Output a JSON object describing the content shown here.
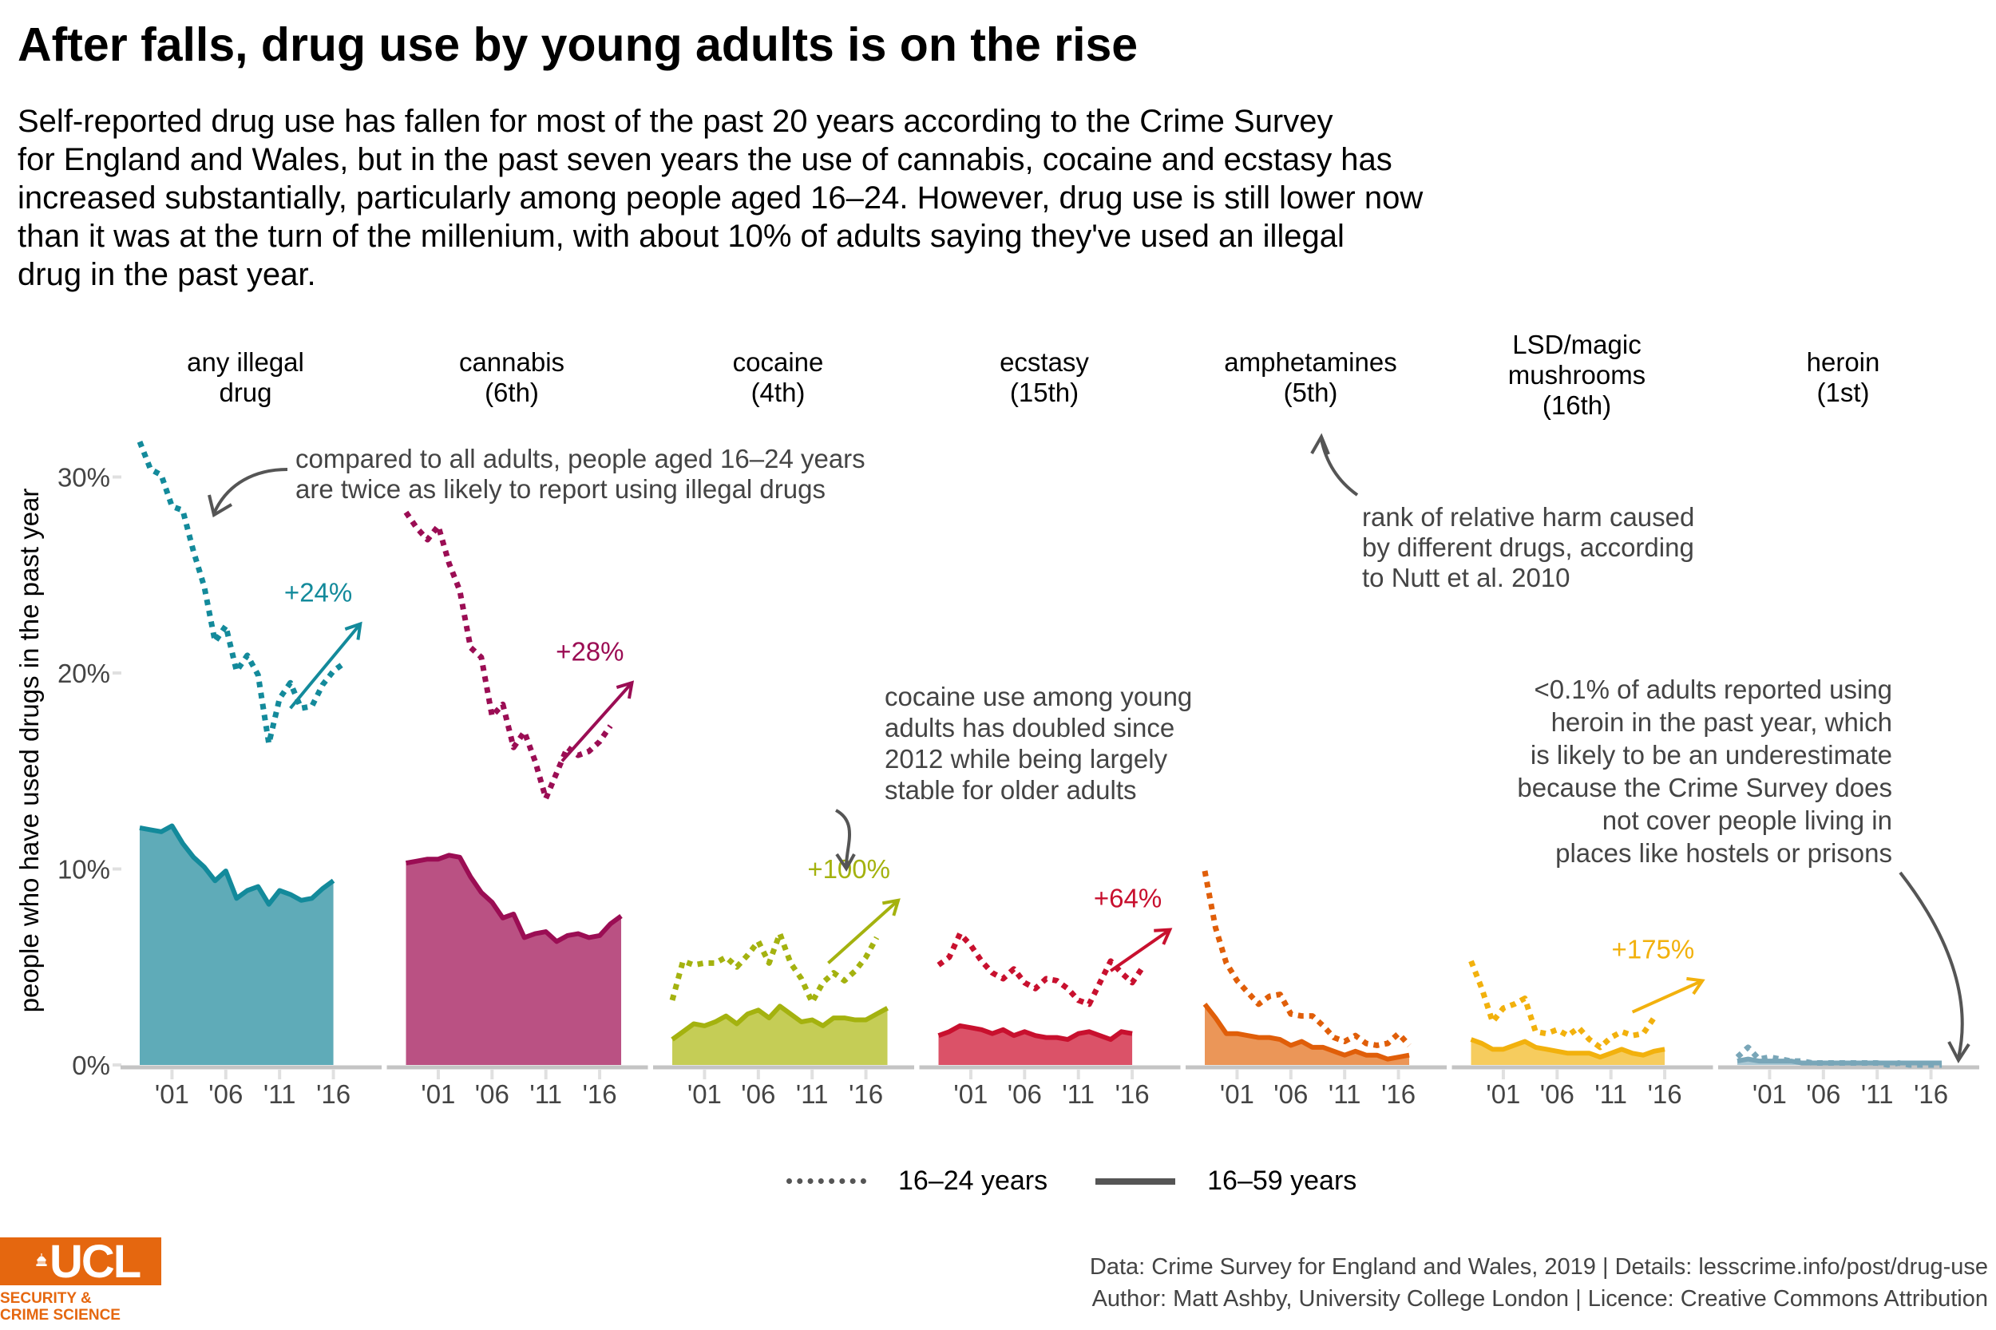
{
  "title": "After falls, drug use by young adults is on the rise",
  "subtitle_lines": [
    "Self-reported drug use has fallen for most of the past 20 years according to the Crime Survey",
    "for England and Wales, but in the past seven years the use of cannabis, cocaine and ecstasy has",
    "increased substantially, particularly among people aged 16–24. However, drug use is still lower now",
    "than it was at the turn of the millenium, with about 10% of adults saying they've used an illegal",
    "drug in the past year."
  ],
  "legend": {
    "young_label": "16–24 years",
    "all_label": "16–59 years"
  },
  "logo": {
    "brand": "UCL",
    "line1": "SECURITY &",
    "line2": "CRIME SCIENCE",
    "color": "#e5670f"
  },
  "caption": {
    "line1": "Data: Crime Survey for England and Wales, 2019 |  Details: lesscrime.info/post/drug-use",
    "line2": "Author: Matt Ashby, University College London |  Licence: Creative Commons Attribution"
  },
  "chart_data": {
    "type": "area",
    "ylabel": "people who have used drugs in the past year",
    "xlabel": "",
    "ylim": [
      0,
      32
    ],
    "yticks": [
      0,
      10,
      20,
      30
    ],
    "ytick_labels": [
      "0%",
      "10%",
      "20%",
      "30%"
    ],
    "xlim": [
      1997,
      2020
    ],
    "xticks": [
      2001,
      2006,
      2011,
      2016
    ],
    "xtick_labels": [
      "'01",
      "'06",
      "'11",
      "'16"
    ],
    "grid": false,
    "legend_position": "bottom",
    "years": [
      1998,
      1999,
      2000,
      2001,
      2002,
      2003,
      2004,
      2005,
      2006,
      2007,
      2008,
      2009,
      2010,
      2011,
      2012,
      2013,
      2014,
      2015,
      2016,
      2017,
      2018,
      2019
    ],
    "panels": [
      {
        "title": [
          "any illegal",
          "drug"
        ],
        "color": "#138a9b",
        "fill": "#5fabb8",
        "young": [
          31.8,
          30.4,
          30.1,
          28.5,
          28.3,
          26.2,
          24.4,
          21.6,
          22.4,
          20.1,
          20.9,
          19.9,
          16.4,
          18.7,
          19.5,
          18.2,
          18.3,
          19.4,
          20.1,
          20.5,
          null,
          null
        ],
        "all": [
          12.1,
          12.0,
          11.9,
          12.2,
          11.3,
          10.6,
          10.1,
          9.4,
          9.9,
          8.5,
          8.9,
          9.1,
          8.2,
          8.9,
          8.7,
          8.4,
          8.5,
          9.0,
          9.4,
          null,
          null,
          null
        ],
        "change_label": "+24%",
        "arrow": [
          2012.0,
          18.2,
          2018.5,
          22.5
        ]
      },
      {
        "title": [
          "cannabis",
          "(6th)"
        ],
        "color": "#9b0d54",
        "fill": "#ba5183",
        "young": [
          28.2,
          27.4,
          26.8,
          27.5,
          25.6,
          24.2,
          21.3,
          20.8,
          17.8,
          18.4,
          16.2,
          17.0,
          15.5,
          13.6,
          14.9,
          16.2,
          15.8,
          16.0,
          16.5,
          17.3,
          null,
          null
        ],
        "all": [
          10.3,
          10.4,
          10.5,
          10.5,
          10.7,
          10.6,
          9.6,
          8.8,
          8.3,
          7.5,
          7.7,
          6.5,
          6.7,
          6.8,
          6.3,
          6.6,
          6.7,
          6.5,
          6.6,
          7.2,
          7.6,
          null
        ],
        "change_label": "+28%",
        "arrow": [
          2012.5,
          15.5,
          2019.0,
          19.5
        ]
      },
      {
        "title": [
          "cocaine",
          "(4th)"
        ],
        "color": "#a4b20f",
        "fill": "#c5cd56",
        "young": [
          3.3,
          5.3,
          5.1,
          5.2,
          5.2,
          5.5,
          5.0,
          5.6,
          6.3,
          5.2,
          6.7,
          5.2,
          4.4,
          3.2,
          4.2,
          4.7,
          4.3,
          4.8,
          5.5,
          6.5,
          null,
          null
        ],
        "all": [
          1.3,
          1.7,
          2.1,
          2.0,
          2.2,
          2.5,
          2.1,
          2.6,
          2.8,
          2.4,
          3.0,
          2.6,
          2.2,
          2.3,
          2.0,
          2.4,
          2.4,
          2.3,
          2.3,
          2.6,
          2.9,
          null
        ],
        "change_label": "+100%",
        "arrow": [
          2012.5,
          5.2,
          2019.0,
          8.4
        ]
      },
      {
        "title": [
          "ecstasy",
          "(15th)"
        ],
        "color": "#c8102e",
        "fill": "#db5268",
        "young": [
          5.1,
          5.5,
          6.7,
          6.1,
          5.3,
          4.7,
          4.4,
          4.9,
          4.2,
          3.9,
          4.4,
          4.3,
          3.9,
          3.3,
          3.1,
          4.2,
          5.3,
          4.7,
          4.2,
          5.0,
          null,
          null
        ],
        "all": [
          1.5,
          1.7,
          2.0,
          1.9,
          1.8,
          1.6,
          1.8,
          1.5,
          1.7,
          1.5,
          1.4,
          1.4,
          1.3,
          1.6,
          1.7,
          1.5,
          1.3,
          1.7,
          1.6,
          null,
          null,
          null
        ],
        "change_label": "+64%",
        "arrow": [
          2014.0,
          4.8,
          2019.5,
          6.9
        ]
      },
      {
        "title": [
          "amphetamines",
          "(5th)"
        ],
        "color": "#e05e09",
        "fill": "#eb9658",
        "young": [
          9.9,
          7.0,
          5.2,
          4.3,
          3.7,
          3.1,
          3.5,
          3.6,
          2.6,
          2.5,
          2.5,
          2.0,
          1.4,
          1.2,
          1.5,
          1.1,
          1.0,
          1.1,
          1.6,
          1.0,
          null,
          null
        ],
        "all": [
          3.1,
          2.4,
          1.6,
          1.6,
          1.5,
          1.4,
          1.4,
          1.3,
          1.0,
          1.2,
          0.9,
          0.9,
          0.7,
          0.5,
          0.7,
          0.5,
          0.5,
          0.3,
          0.4,
          0.5,
          null,
          null
        ],
        "change_label": "",
        "arrow": null
      },
      {
        "title": [
          "LSD/magic",
          "mushrooms",
          "(16th)"
        ],
        "color": "#f2b10d",
        "fill": "#f6cc5e",
        "young": [
          5.3,
          3.9,
          2.2,
          2.9,
          3.1,
          3.4,
          1.7,
          1.6,
          1.8,
          1.5,
          1.9,
          1.3,
          0.9,
          1.4,
          1.7,
          1.5,
          1.6,
          2.4,
          null,
          null,
          null,
          null
        ],
        "all": [
          1.3,
          1.1,
          0.8,
          0.8,
          1.0,
          1.2,
          0.9,
          0.8,
          0.7,
          0.6,
          0.6,
          0.6,
          0.4,
          0.6,
          0.8,
          0.6,
          0.5,
          0.7,
          0.8,
          null,
          null,
          null
        ],
        "change_label": "+175%",
        "arrow": [
          2013.0,
          2.7,
          2019.5,
          4.3
        ]
      },
      {
        "title": [
          "heroin",
          "(1st)"
        ],
        "color": "#79a6b8",
        "fill": "#a9c7d3",
        "young": [
          0.4,
          0.9,
          0.3,
          0.4,
          0.3,
          0.2,
          0.2,
          0.1,
          0.1,
          0.1,
          0.1,
          0.1,
          0.1,
          0.1,
          0.0,
          0.1,
          0.0,
          0.0,
          0.0,
          0.0,
          null,
          null
        ],
        "all": [
          0.2,
          0.3,
          0.2,
          0.2,
          0.2,
          0.2,
          0.1,
          0.1,
          0.1,
          0.1,
          0.1,
          0.1,
          0.1,
          0.1,
          0.1,
          0.1,
          0.1,
          0.1,
          0.1,
          0.1,
          null,
          null
        ],
        "change_label": "",
        "arrow": null
      }
    ],
    "annotations": [
      {
        "id": "young-adults",
        "lines": [
          "compared to all adults, people aged 16–24 years",
          "are twice as likely to report using illegal drugs"
        ]
      },
      {
        "id": "harm-rank",
        "lines": [
          "rank of relative harm caused",
          "by different drugs, according",
          "to Nutt et al. 2010"
        ]
      },
      {
        "id": "cocaine",
        "lines": [
          "cocaine use among young",
          "adults has doubled since",
          "2012 while being largely",
          "stable for older adults"
        ]
      },
      {
        "id": "heroin",
        "lines": [
          "<0.1% of adults reported using",
          "heroin in the past year, which",
          "is likely to be an underestimate",
          "because the Crime Survey does",
          "not cover people living in",
          "places like hostels or prisons"
        ]
      }
    ]
  }
}
